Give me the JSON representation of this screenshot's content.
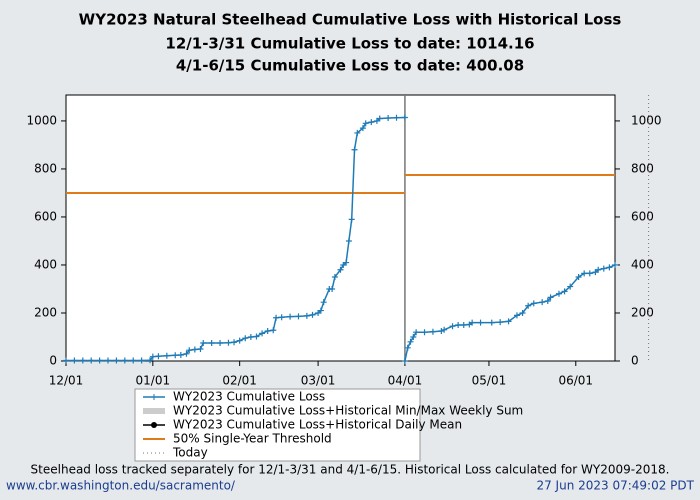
{
  "chart_data": {
    "type": "line",
    "title": "WY2023 Natural Steelhead Cumulative Loss with Historical Loss",
    "subtitle": [
      "12/1-3/31 Cumulative Loss to date: 1014.16",
      "4/1-6/15 Cumulative Loss to date: 400.08"
    ],
    "x": [
      0,
      3,
      6,
      9,
      12,
      15,
      18,
      21,
      24,
      27,
      30,
      31,
      33,
      36,
      39,
      41,
      43,
      44,
      46,
      48,
      49,
      52,
      55,
      58,
      60,
      62,
      64,
      66,
      68,
      70,
      72,
      74,
      75,
      77,
      80,
      83,
      86,
      88,
      90,
      91,
      92,
      94,
      95,
      96,
      98,
      99,
      100,
      101,
      102,
      103,
      104,
      106,
      107,
      109,
      111,
      112,
      115,
      118,
      121,
      121,
      121,
      122,
      123,
      124,
      125,
      128,
      131,
      134,
      135,
      138,
      140,
      142,
      144,
      145,
      148,
      152,
      155,
      158,
      161,
      163,
      165,
      167,
      170,
      172,
      173,
      176,
      178,
      180,
      183,
      185,
      187,
      189,
      190,
      192,
      194,
      196
    ],
    "series": [
      {
        "name": "WY2023 Cumulative Loss",
        "color": "#1f7bb6",
        "values": [
          2,
          2,
          2,
          2,
          2,
          2,
          2,
          2,
          2,
          2,
          3,
          18,
          20,
          22,
          24,
          25,
          30,
          45,
          48,
          50,
          75,
          75,
          75,
          76,
          78,
          85,
          95,
          100,
          102,
          115,
          125,
          128,
          180,
          182,
          185,
          186,
          188,
          192,
          200,
          210,
          245,
          300,
          300,
          350,
          380,
          400,
          410,
          500,
          590,
          880,
          950,
          970,
          990,
          995,
          1000,
          1010,
          1012,
          1013,
          1014.16,
          null,
          0,
          55,
          80,
          100,
          120,
          120,
          122,
          125,
          130,
          145,
          150,
          150,
          152,
          160,
          160,
          160,
          162,
          165,
          190,
          200,
          230,
          240,
          245,
          250,
          265,
          280,
          290,
          310,
          350,
          365,
          365,
          370,
          380,
          385,
          390,
          400.08
        ]
      }
    ],
    "minmax": {
      "name": "WY2023 Cumulative Loss+Historical Min/Max Weekly Sum",
      "color": "#cccccc"
    },
    "daily_mean": {
      "name": "WY2023 Cumulative Loss+Historical Daily Mean",
      "color": "#000000"
    },
    "threshold": {
      "name": "50% Single-Year Threshold",
      "color": "#e07b1a",
      "segments": [
        {
          "x": [
            0,
            121
          ],
          "values": [
            700,
            700
          ]
        },
        {
          "x": [
            121,
            196
          ],
          "values": [
            775,
            775
          ]
        }
      ]
    },
    "divider": 121,
    "today": {
      "name": "Today",
      "x": 208
    },
    "xlim": [
      0,
      196
    ],
    "xticks": [
      {
        "value": 0,
        "label": "12/01"
      },
      {
        "value": 31,
        "label": "01/01"
      },
      {
        "value": 62,
        "label": "02/01"
      },
      {
        "value": 90,
        "label": "03/01"
      },
      {
        "value": 121,
        "label": "04/01"
      },
      {
        "value": 151,
        "label": "05/01"
      },
      {
        "value": 182,
        "label": "06/01"
      }
    ],
    "ylim": [
      0,
      1108
    ],
    "yticks": [
      0,
      200,
      400,
      600,
      800,
      1000
    ],
    "note": "Steelhead loss tracked separately for 12/1-3/31 and 4/1-6/15. Historical Loss calculated for WY2009-2018.",
    "source": "www.cbr.washington.edu/sacramento/",
    "timestamp": "27 Jun 2023 07:49:02 PDT"
  }
}
